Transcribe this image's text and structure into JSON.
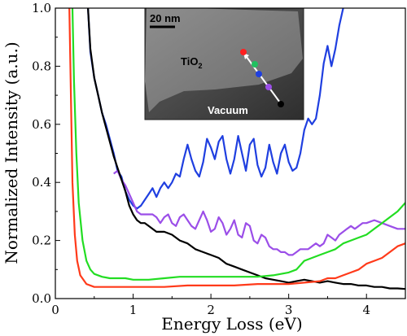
{
  "chart_data": {
    "type": "line",
    "xlabel": "Energy Loss (eV)",
    "ylabel": "Normalized Intensity (a.u.)",
    "xlim": [
      0,
      4.5
    ],
    "ylim": [
      0,
      1.0
    ],
    "x_ticks": [
      "0",
      "1",
      "2",
      "3",
      "4"
    ],
    "y_ticks": [
      "0.0",
      "0.2",
      "0.4",
      "0.6",
      "0.8",
      "1.0"
    ],
    "grid": false,
    "legend": "none",
    "series": [
      {
        "color": "#1f3fe0",
        "points": [
          [
            0.42,
            1.0
          ],
          [
            0.45,
            0.85
          ],
          [
            0.5,
            0.76
          ],
          [
            0.55,
            0.7
          ],
          [
            0.6,
            0.64
          ],
          [
            0.65,
            0.6
          ],
          [
            0.7,
            0.55
          ],
          [
            0.75,
            0.5
          ],
          [
            0.8,
            0.44
          ],
          [
            0.85,
            0.42
          ],
          [
            0.9,
            0.37
          ],
          [
            0.95,
            0.34
          ],
          [
            1.0,
            0.32
          ],
          [
            1.05,
            0.31
          ],
          [
            1.1,
            0.32
          ],
          [
            1.15,
            0.34
          ],
          [
            1.2,
            0.36
          ],
          [
            1.25,
            0.38
          ],
          [
            1.3,
            0.35
          ],
          [
            1.35,
            0.38
          ],
          [
            1.4,
            0.4
          ],
          [
            1.45,
            0.38
          ],
          [
            1.5,
            0.4
          ],
          [
            1.55,
            0.43
          ],
          [
            1.6,
            0.42
          ],
          [
            1.65,
            0.48
          ],
          [
            1.7,
            0.53
          ],
          [
            1.75,
            0.48
          ],
          [
            1.8,
            0.44
          ],
          [
            1.85,
            0.42
          ],
          [
            1.9,
            0.47
          ],
          [
            1.95,
            0.55
          ],
          [
            2.0,
            0.52
          ],
          [
            2.05,
            0.48
          ],
          [
            2.1,
            0.54
          ],
          [
            2.15,
            0.56
          ],
          [
            2.2,
            0.48
          ],
          [
            2.25,
            0.43
          ],
          [
            2.3,
            0.48
          ],
          [
            2.35,
            0.56
          ],
          [
            2.4,
            0.5
          ],
          [
            2.45,
            0.44
          ],
          [
            2.5,
            0.53
          ],
          [
            2.55,
            0.55
          ],
          [
            2.6,
            0.46
          ],
          [
            2.65,
            0.42
          ],
          [
            2.7,
            0.45
          ],
          [
            2.75,
            0.53
          ],
          [
            2.8,
            0.47
          ],
          [
            2.85,
            0.43
          ],
          [
            2.9,
            0.5
          ],
          [
            2.95,
            0.53
          ],
          [
            3.0,
            0.47
          ],
          [
            3.05,
            0.44
          ],
          [
            3.1,
            0.45
          ],
          [
            3.15,
            0.5
          ],
          [
            3.2,
            0.58
          ],
          [
            3.25,
            0.62
          ],
          [
            3.3,
            0.6
          ],
          [
            3.35,
            0.62
          ],
          [
            3.4,
            0.7
          ],
          [
            3.45,
            0.81
          ],
          [
            3.5,
            0.87
          ],
          [
            3.55,
            0.8
          ],
          [
            3.6,
            0.86
          ],
          [
            3.65,
            0.94
          ],
          [
            3.7,
            1.0
          ]
        ]
      },
      {
        "color": "#9b4ee8",
        "points": [
          [
            0.75,
            0.43
          ],
          [
            0.8,
            0.44
          ],
          [
            0.85,
            0.41
          ],
          [
            0.9,
            0.39
          ],
          [
            0.95,
            0.36
          ],
          [
            1.0,
            0.33
          ],
          [
            1.05,
            0.3
          ],
          [
            1.1,
            0.29
          ],
          [
            1.15,
            0.29
          ],
          [
            1.2,
            0.29
          ],
          [
            1.25,
            0.29
          ],
          [
            1.3,
            0.28
          ],
          [
            1.35,
            0.26
          ],
          [
            1.4,
            0.28
          ],
          [
            1.45,
            0.29
          ],
          [
            1.5,
            0.26
          ],
          [
            1.55,
            0.25
          ],
          [
            1.6,
            0.28
          ],
          [
            1.65,
            0.29
          ],
          [
            1.7,
            0.27
          ],
          [
            1.75,
            0.25
          ],
          [
            1.8,
            0.24
          ],
          [
            1.85,
            0.27
          ],
          [
            1.9,
            0.3
          ],
          [
            1.95,
            0.27
          ],
          [
            2.0,
            0.23
          ],
          [
            2.05,
            0.24
          ],
          [
            2.1,
            0.28
          ],
          [
            2.15,
            0.26
          ],
          [
            2.2,
            0.22
          ],
          [
            2.25,
            0.24
          ],
          [
            2.3,
            0.27
          ],
          [
            2.35,
            0.22
          ],
          [
            2.4,
            0.21
          ],
          [
            2.45,
            0.26
          ],
          [
            2.5,
            0.25
          ],
          [
            2.55,
            0.2
          ],
          [
            2.6,
            0.19
          ],
          [
            2.65,
            0.22
          ],
          [
            2.7,
            0.21
          ],
          [
            2.75,
            0.18
          ],
          [
            2.8,
            0.17
          ],
          [
            2.85,
            0.17
          ],
          [
            2.9,
            0.16
          ],
          [
            2.95,
            0.16
          ],
          [
            3.0,
            0.15
          ],
          [
            3.05,
            0.15
          ],
          [
            3.1,
            0.16
          ],
          [
            3.15,
            0.17
          ],
          [
            3.2,
            0.17
          ],
          [
            3.25,
            0.17
          ],
          [
            3.3,
            0.18
          ],
          [
            3.35,
            0.19
          ],
          [
            3.4,
            0.18
          ],
          [
            3.45,
            0.19
          ],
          [
            3.5,
            0.22
          ],
          [
            3.55,
            0.21
          ],
          [
            3.6,
            0.2
          ],
          [
            3.65,
            0.22
          ],
          [
            3.7,
            0.23
          ],
          [
            3.75,
            0.24
          ],
          [
            3.8,
            0.25
          ],
          [
            3.85,
            0.24
          ],
          [
            3.9,
            0.25
          ],
          [
            3.95,
            0.26
          ],
          [
            4.0,
            0.26
          ],
          [
            4.1,
            0.27
          ],
          [
            4.2,
            0.26
          ],
          [
            4.3,
            0.25
          ],
          [
            4.4,
            0.24
          ],
          [
            4.5,
            0.24
          ]
        ]
      },
      {
        "color": "#000000",
        "points": [
          [
            0.42,
            1.0
          ],
          [
            0.45,
            0.86
          ],
          [
            0.5,
            0.76
          ],
          [
            0.55,
            0.7
          ],
          [
            0.6,
            0.64
          ],
          [
            0.65,
            0.59
          ],
          [
            0.7,
            0.54
          ],
          [
            0.75,
            0.49
          ],
          [
            0.8,
            0.45
          ],
          [
            0.85,
            0.41
          ],
          [
            0.9,
            0.37
          ],
          [
            0.95,
            0.32
          ],
          [
            1.0,
            0.29
          ],
          [
            1.05,
            0.27
          ],
          [
            1.1,
            0.26
          ],
          [
            1.15,
            0.26
          ],
          [
            1.2,
            0.25
          ],
          [
            1.3,
            0.23
          ],
          [
            1.4,
            0.23
          ],
          [
            1.5,
            0.22
          ],
          [
            1.6,
            0.2
          ],
          [
            1.7,
            0.19
          ],
          [
            1.8,
            0.17
          ],
          [
            1.9,
            0.16
          ],
          [
            2.0,
            0.15
          ],
          [
            2.1,
            0.14
          ],
          [
            2.2,
            0.12
          ],
          [
            2.3,
            0.11
          ],
          [
            2.4,
            0.1
          ],
          [
            2.5,
            0.09
          ],
          [
            2.6,
            0.08
          ],
          [
            2.7,
            0.07
          ],
          [
            2.8,
            0.065
          ],
          [
            2.9,
            0.06
          ],
          [
            3.0,
            0.055
          ],
          [
            3.1,
            0.06
          ],
          [
            3.2,
            0.065
          ],
          [
            3.3,
            0.06
          ],
          [
            3.4,
            0.055
          ],
          [
            3.5,
            0.06
          ],
          [
            3.6,
            0.055
          ],
          [
            3.7,
            0.05
          ],
          [
            3.8,
            0.05
          ],
          [
            3.9,
            0.045
          ],
          [
            4.0,
            0.045
          ],
          [
            4.1,
            0.04
          ],
          [
            4.2,
            0.04
          ],
          [
            4.3,
            0.035
          ],
          [
            4.4,
            0.035
          ],
          [
            4.5,
            0.033
          ]
        ]
      },
      {
        "color": "#22dd22",
        "points": [
          [
            0.22,
            1.0
          ],
          [
            0.24,
            0.75
          ],
          [
            0.27,
            0.5
          ],
          [
            0.3,
            0.33
          ],
          [
            0.35,
            0.2
          ],
          [
            0.4,
            0.13
          ],
          [
            0.45,
            0.1
          ],
          [
            0.5,
            0.085
          ],
          [
            0.6,
            0.075
          ],
          [
            0.7,
            0.07
          ],
          [
            0.8,
            0.07
          ],
          [
            0.9,
            0.07
          ],
          [
            1.0,
            0.065
          ],
          [
            1.2,
            0.065
          ],
          [
            1.4,
            0.07
          ],
          [
            1.6,
            0.075
          ],
          [
            1.8,
            0.075
          ],
          [
            2.0,
            0.075
          ],
          [
            2.2,
            0.075
          ],
          [
            2.4,
            0.075
          ],
          [
            2.6,
            0.075
          ],
          [
            2.8,
            0.08
          ],
          [
            3.0,
            0.09
          ],
          [
            3.1,
            0.1
          ],
          [
            3.2,
            0.13
          ],
          [
            3.3,
            0.14
          ],
          [
            3.4,
            0.15
          ],
          [
            3.5,
            0.16
          ],
          [
            3.6,
            0.17
          ],
          [
            3.7,
            0.19
          ],
          [
            3.8,
            0.2
          ],
          [
            3.9,
            0.21
          ],
          [
            4.0,
            0.22
          ],
          [
            4.1,
            0.24
          ],
          [
            4.2,
            0.26
          ],
          [
            4.3,
            0.28
          ],
          [
            4.4,
            0.3
          ],
          [
            4.5,
            0.33
          ]
        ]
      },
      {
        "color": "#ff3a1a",
        "points": [
          [
            0.18,
            1.0
          ],
          [
            0.2,
            0.7
          ],
          [
            0.22,
            0.4
          ],
          [
            0.25,
            0.22
          ],
          [
            0.28,
            0.13
          ],
          [
            0.32,
            0.08
          ],
          [
            0.4,
            0.05
          ],
          [
            0.5,
            0.04
          ],
          [
            0.7,
            0.04
          ],
          [
            0.9,
            0.04
          ],
          [
            1.1,
            0.04
          ],
          [
            1.4,
            0.04
          ],
          [
            1.7,
            0.045
          ],
          [
            2.0,
            0.045
          ],
          [
            2.3,
            0.045
          ],
          [
            2.6,
            0.05
          ],
          [
            2.9,
            0.05
          ],
          [
            3.0,
            0.05
          ],
          [
            3.2,
            0.055
          ],
          [
            3.4,
            0.06
          ],
          [
            3.5,
            0.07
          ],
          [
            3.6,
            0.07
          ],
          [
            3.7,
            0.08
          ],
          [
            3.8,
            0.09
          ],
          [
            3.9,
            0.1
          ],
          [
            4.0,
            0.12
          ],
          [
            4.1,
            0.13
          ],
          [
            4.2,
            0.14
          ],
          [
            4.3,
            0.16
          ],
          [
            4.4,
            0.18
          ],
          [
            4.5,
            0.19
          ]
        ]
      }
    ],
    "inset": {
      "scalebar_label": "20 nm",
      "material_label": "TiO",
      "material_subscript": "2",
      "region_label": "Vacuum",
      "marker_colors": [
        "#ff2020",
        "#20c060",
        "#1f3fe0",
        "#9b4ee8",
        "#000000"
      ]
    }
  }
}
